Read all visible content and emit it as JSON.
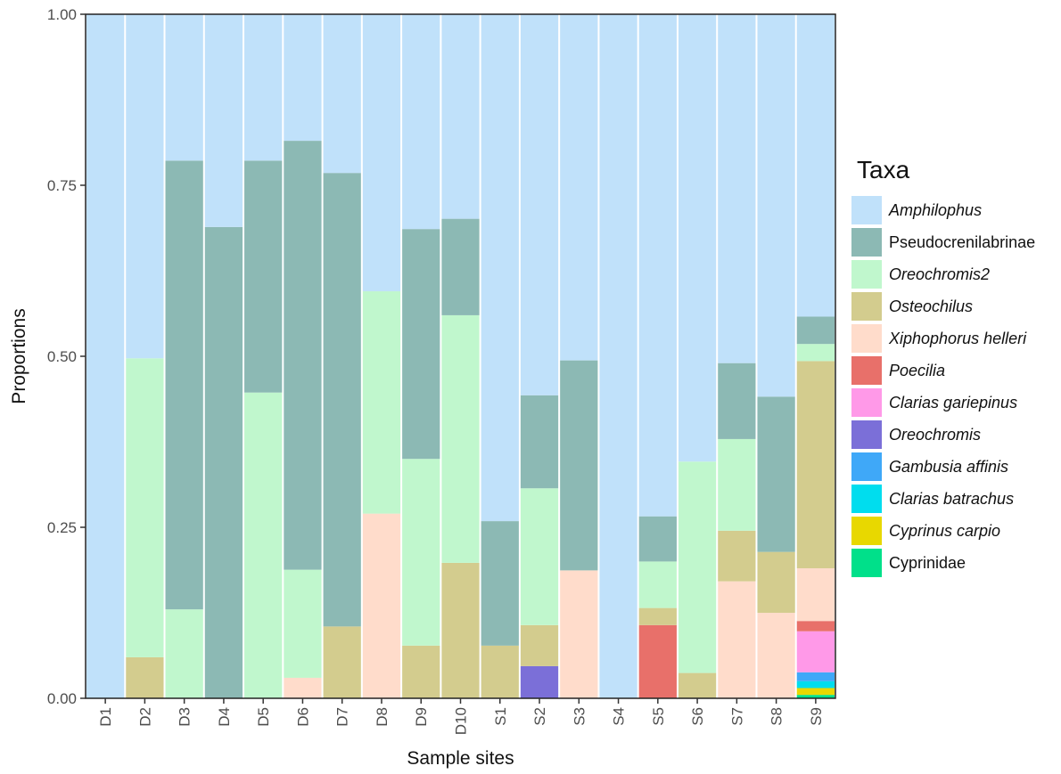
{
  "chart_data": {
    "type": "bar",
    "stacked": true,
    "xlabel": "Sample sites",
    "ylabel": "Proportions",
    "ylim": [
      0,
      1
    ],
    "yticks": [
      "0.00",
      "0.25",
      "0.50",
      "0.75",
      "1.00"
    ],
    "grid": false,
    "legend_position": "right",
    "legend_title": "Taxa",
    "categories": [
      "D1",
      "D2",
      "D3",
      "D4",
      "D5",
      "D6",
      "D7",
      "D8",
      "D9",
      "D10",
      "S1",
      "S2",
      "S3",
      "S4",
      "S5",
      "S6",
      "S7",
      "S8",
      "S9"
    ],
    "series": [
      {
        "name": "Cyprinidae",
        "italic": false,
        "color": "#00E08A",
        "values": [
          0,
          0,
          0,
          0,
          0,
          0,
          0,
          0,
          0,
          0,
          0,
          0,
          0,
          0,
          0,
          0,
          0,
          0,
          0.005
        ]
      },
      {
        "name": "Cyprinus carpio",
        "italic": true,
        "color": "#E8D800",
        "values": [
          0,
          0,
          0,
          0,
          0,
          0,
          0,
          0,
          0,
          0,
          0,
          0,
          0,
          0,
          0,
          0,
          0,
          0,
          0.01
        ]
      },
      {
        "name": "Clarias batrachus",
        "italic": true,
        "color": "#00DDEE",
        "values": [
          0,
          0,
          0,
          0,
          0,
          0,
          0,
          0,
          0,
          0,
          0,
          0,
          0,
          0,
          0,
          0,
          0,
          0,
          0.01
        ]
      },
      {
        "name": "Gambusia affinis",
        "italic": true,
        "color": "#3FA8F8",
        "values": [
          0,
          0,
          0,
          0,
          0,
          0,
          0,
          0,
          0,
          0,
          0,
          0,
          0,
          0,
          0,
          0,
          0,
          0,
          0.013
        ]
      },
      {
        "name": "Oreochromis",
        "italic": true,
        "color": "#7B6FD8",
        "values": [
          0,
          0,
          0,
          0,
          0,
          0,
          0,
          0,
          0,
          0,
          0,
          0.047,
          0,
          0,
          0,
          0,
          0,
          0,
          0
        ]
      },
      {
        "name": "Clarias gariepinus",
        "italic": true,
        "color": "#FF99E8",
        "values": [
          0,
          0,
          0,
          0,
          0,
          0,
          0,
          0,
          0,
          0,
          0,
          0,
          0,
          0,
          0,
          0,
          0,
          0,
          0.06
        ]
      },
      {
        "name": "Poecilia",
        "italic": true,
        "color": "#E8706A",
        "values": [
          0,
          0,
          0,
          0,
          0,
          0,
          0,
          0,
          0,
          0,
          0,
          0,
          0,
          0,
          0.107,
          0,
          0,
          0,
          0.015
        ]
      },
      {
        "name": "Xiphophorus helleri",
        "italic": true,
        "color": "#FFDCCB",
        "values": [
          0,
          0,
          0,
          0,
          0,
          0.03,
          0,
          0.27,
          0,
          0,
          0,
          0,
          0.187,
          0,
          0,
          0,
          0.171,
          0.125,
          0.077
        ]
      },
      {
        "name": "Osteochilus",
        "italic": true,
        "color": "#D3CC8E",
        "values": [
          0,
          0.06,
          0,
          0,
          0,
          0,
          0.105,
          0,
          0.077,
          0.198,
          0.077,
          0.06,
          0,
          0,
          0.025,
          0.037,
          0.074,
          0.089,
          0.303
        ]
      },
      {
        "name": "Oreochromis2",
        "italic": true,
        "color": "#C0F7CD",
        "values": [
          0,
          0.437,
          0.13,
          0,
          0.447,
          0.158,
          0,
          0.325,
          0.273,
          0.362,
          0,
          0.2,
          0,
          0,
          0.068,
          0.309,
          0.134,
          0,
          0.025
        ]
      },
      {
        "name": "Pseudocrenilabrinae",
        "italic": false,
        "color": "#8CB9B4",
        "values": [
          0,
          0,
          0.656,
          0.689,
          0.339,
          0.627,
          0.663,
          0,
          0.336,
          0.141,
          0.182,
          0.136,
          0.307,
          0,
          0.066,
          0,
          0.111,
          0.227,
          0.04
        ]
      },
      {
        "name": "Amphilophus",
        "italic": true,
        "color": "#C0E1FA",
        "values": [
          1,
          0.503,
          0.214,
          0.311,
          0.214,
          0.185,
          0.232,
          0.405,
          0.314,
          0.299,
          0.741,
          0.557,
          0.506,
          1,
          0.734,
          0.654,
          0.51,
          0.559,
          0.442
        ]
      }
    ],
    "legend_order": [
      "Amphilophus",
      "Pseudocrenilabrinae",
      "Oreochromis2",
      "Osteochilus",
      "Xiphophorus helleri",
      "Poecilia",
      "Clarias gariepinus",
      "Oreochromis",
      "Gambusia affinis",
      "Clarias batrachus",
      "Cyprinus carpio",
      "Cyprinidae"
    ]
  }
}
